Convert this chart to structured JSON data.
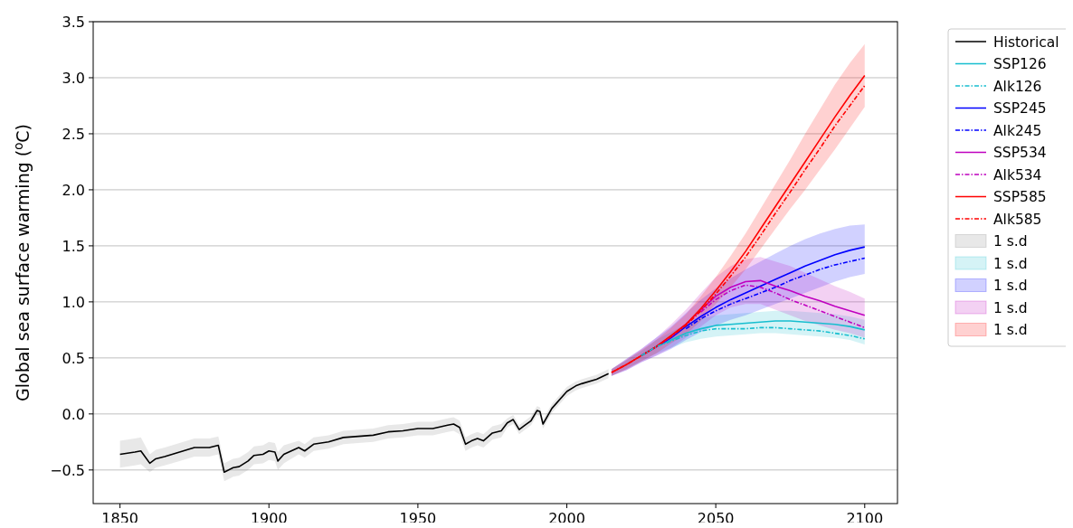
{
  "chart_data": {
    "type": "line",
    "ylabel": "Global sea surface warming ($^{o}$C)",
    "xlim": [
      1841,
      2111
    ],
    "ylim": [
      -0.8,
      3.5
    ],
    "xticks": [
      1850,
      1900,
      1950,
      2000,
      2050,
      2100
    ],
    "yticks": [
      -0.5,
      {
        "value": 0,
        "label": "0.0"
      },
      0.5,
      {
        "value": 1,
        "label": "1.0"
      },
      1.5,
      {
        "value": 2,
        "label": "2.0"
      },
      2.5,
      {
        "value": 3,
        "label": "3.0"
      },
      3.5
    ],
    "grid": "y",
    "legend": "right",
    "series": [
      {
        "name": "Historical",
        "color": "#000000",
        "line_style": "solid",
        "x": [
          1850,
          1855,
          1857,
          1860,
          1862,
          1865,
          1870,
          1875,
          1880,
          1883,
          1885,
          1888,
          1890,
          1893,
          1895,
          1898,
          1900,
          1902,
          1903,
          1905,
          1910,
          1912,
          1915,
          1920,
          1925,
          1930,
          1935,
          1940,
          1945,
          1950,
          1955,
          1960,
          1962,
          1964,
          1966,
          1968,
          1970,
          1972,
          1975,
          1978,
          1980,
          1982,
          1984,
          1986,
          1988,
          1990,
          1991,
          1992,
          1995,
          2000,
          2003,
          2005,
          2010,
          2014
        ],
        "values": [
          -0.36,
          -0.34,
          -0.33,
          -0.44,
          -0.4,
          -0.38,
          -0.34,
          -0.3,
          -0.3,
          -0.28,
          -0.52,
          -0.48,
          -0.47,
          -0.42,
          -0.37,
          -0.36,
          -0.33,
          -0.34,
          -0.42,
          -0.36,
          -0.3,
          -0.33,
          -0.27,
          -0.25,
          -0.21,
          -0.2,
          -0.19,
          -0.16,
          -0.15,
          -0.13,
          -0.13,
          -0.1,
          -0.09,
          -0.12,
          -0.27,
          -0.24,
          -0.22,
          -0.24,
          -0.17,
          -0.15,
          -0.08,
          -0.05,
          -0.14,
          -0.1,
          -0.06,
          0.03,
          0.02,
          -0.09,
          0.05,
          0.2,
          0.25,
          0.27,
          0.31,
          0.36
        ]
      },
      {
        "name": "SSP126",
        "color": "#17becf",
        "line_style": "solid",
        "x": [
          2025,
          2030,
          2035,
          2040,
          2045,
          2050,
          2055,
          2060,
          2065,
          2070,
          2075,
          2080,
          2085,
          2090,
          2095,
          2100
        ],
        "values": [
          0.52,
          0.6,
          0.66,
          0.72,
          0.76,
          0.79,
          0.8,
          0.81,
          0.82,
          0.83,
          0.83,
          0.82,
          0.81,
          0.8,
          0.78,
          0.75
        ]
      },
      {
        "name": "Alk126",
        "color": "#17becf",
        "line_style": "dashed",
        "x": [
          2025,
          2030,
          2035,
          2040,
          2045,
          2050,
          2055,
          2060,
          2065,
          2070,
          2075,
          2080,
          2085,
          2090,
          2095,
          2100
        ],
        "values": [
          0.52,
          0.6,
          0.65,
          0.7,
          0.74,
          0.76,
          0.76,
          0.76,
          0.77,
          0.77,
          0.76,
          0.75,
          0.74,
          0.72,
          0.7,
          0.67
        ]
      },
      {
        "name": "SSP245",
        "color": "#0000ff",
        "line_style": "solid",
        "x": [
          2025,
          2030,
          2035,
          2040,
          2045,
          2050,
          2055,
          2060,
          2065,
          2070,
          2075,
          2080,
          2085,
          2090,
          2095,
          2100
        ],
        "values": [
          0.52,
          0.6,
          0.68,
          0.78,
          0.87,
          0.95,
          1.02,
          1.08,
          1.14,
          1.2,
          1.26,
          1.32,
          1.37,
          1.42,
          1.46,
          1.49
        ]
      },
      {
        "name": "Alk245",
        "color": "#0000ff",
        "line_style": "dashed",
        "x": [
          2040,
          2045,
          2050,
          2055,
          2060,
          2065,
          2070,
          2075,
          2080,
          2085,
          2090,
          2095,
          2100
        ],
        "values": [
          0.76,
          0.85,
          0.92,
          0.98,
          1.03,
          1.08,
          1.13,
          1.19,
          1.24,
          1.29,
          1.33,
          1.36,
          1.39
        ]
      },
      {
        "name": "SSP534",
        "color": "#bf00bf",
        "line_style": "solid",
        "x": [
          2025,
          2030,
          2035,
          2040,
          2045,
          2050,
          2055,
          2060,
          2065,
          2070,
          2075,
          2080,
          2085,
          2090,
          2095,
          2100
        ],
        "values": [
          0.52,
          0.6,
          0.69,
          0.8,
          0.93,
          1.05,
          1.13,
          1.18,
          1.19,
          1.14,
          1.1,
          1.05,
          1.01,
          0.96,
          0.92,
          0.88
        ]
      },
      {
        "name": "Alk534",
        "color": "#bf00bf",
        "line_style": "dashed",
        "x": [
          2045,
          2050,
          2055,
          2060,
          2065,
          2070,
          2075,
          2080,
          2085,
          2090,
          2095,
          2100
        ],
        "values": [
          0.91,
          1.02,
          1.1,
          1.15,
          1.13,
          1.08,
          1.02,
          0.97,
          0.92,
          0.87,
          0.82,
          0.77
        ]
      },
      {
        "name": "SSP585",
        "color": "#ff0000",
        "line_style": "solid",
        "x": [
          2015,
          2020,
          2025,
          2030,
          2035,
          2040,
          2045,
          2050,
          2055,
          2060,
          2065,
          2070,
          2075,
          2080,
          2085,
          2090,
          2095,
          2100
        ],
        "values": [
          0.37,
          0.44,
          0.52,
          0.6,
          0.7,
          0.8,
          0.94,
          1.1,
          1.27,
          1.45,
          1.65,
          1.85,
          2.05,
          2.25,
          2.45,
          2.65,
          2.84,
          3.02
        ]
      },
      {
        "name": "Alk585",
        "color": "#ff0000",
        "line_style": "dashed",
        "x": [
          2015,
          2020,
          2025,
          2030,
          2035,
          2040,
          2045,
          2050,
          2055,
          2060,
          2065,
          2070,
          2075,
          2080,
          2085,
          2090,
          2095,
          2100
        ],
        "values": [
          0.37,
          0.44,
          0.52,
          0.6,
          0.69,
          0.79,
          0.92,
          1.07,
          1.23,
          1.4,
          1.59,
          1.79,
          1.98,
          2.18,
          2.37,
          2.57,
          2.75,
          2.93
        ]
      },
      {
        "name": "1 s.d",
        "type": "area",
        "color": "#808080",
        "x": [
          1850,
          1855,
          1857,
          1860,
          1862,
          1865,
          1870,
          1875,
          1880,
          1883,
          1885,
          1888,
          1890,
          1893,
          1895,
          1898,
          1900,
          1902,
          1903,
          1905,
          1910,
          1912,
          1915,
          1920,
          1925,
          1930,
          1935,
          1940,
          1945,
          1950,
          1955,
          1960,
          1962,
          1964,
          1966,
          1968,
          1970,
          1972,
          1975,
          1978,
          1980,
          1982,
          1984,
          1986,
          1988,
          1990,
          1991,
          1992,
          1995,
          2000,
          2003,
          2005,
          2010,
          2014
        ],
        "values": [
          null,
          null,
          null,
          null,
          null,
          null,
          null,
          null,
          null,
          null,
          null,
          null,
          null,
          null,
          null,
          null,
          null,
          null,
          null,
          null,
          null,
          null,
          null,
          null,
          null,
          null,
          null,
          null,
          null,
          null,
          null,
          null,
          null,
          null,
          null,
          null,
          null,
          null,
          null,
          null,
          null,
          null,
          null,
          null,
          null,
          null,
          null,
          null,
          null,
          null,
          null,
          null,
          null,
          null
        ],
        "upper": [
          -0.24,
          -0.22,
          -0.21,
          -0.36,
          -0.32,
          -0.3,
          -0.26,
          -0.22,
          -0.22,
          -0.2,
          -0.44,
          -0.4,
          -0.39,
          -0.34,
          -0.29,
          -0.28,
          -0.25,
          -0.26,
          -0.34,
          -0.28,
          -0.24,
          -0.27,
          -0.21,
          -0.19,
          -0.15,
          -0.14,
          -0.13,
          -0.1,
          -0.09,
          -0.07,
          -0.07,
          -0.04,
          -0.03,
          -0.06,
          -0.21,
          -0.18,
          -0.16,
          -0.18,
          -0.11,
          -0.09,
          -0.04,
          -0.01,
          -0.1,
          -0.06,
          -0.02,
          0.07,
          0.06,
          -0.05,
          0.09,
          0.24,
          0.29,
          0.31,
          0.35,
          0.4
        ],
        "lower": [
          -0.48,
          -0.46,
          -0.45,
          -0.52,
          -0.48,
          -0.46,
          -0.42,
          -0.38,
          -0.38,
          -0.36,
          -0.6,
          -0.56,
          -0.55,
          -0.5,
          -0.45,
          -0.44,
          -0.41,
          -0.42,
          -0.5,
          -0.44,
          -0.36,
          -0.39,
          -0.33,
          -0.31,
          -0.27,
          -0.26,
          -0.25,
          -0.22,
          -0.21,
          -0.19,
          -0.19,
          -0.16,
          -0.15,
          -0.18,
          -0.33,
          -0.3,
          -0.28,
          -0.3,
          -0.23,
          -0.21,
          -0.12,
          -0.09,
          -0.18,
          -0.14,
          -0.1,
          -0.01,
          -0.02,
          -0.13,
          0.01,
          0.16,
          0.21,
          0.23,
          0.27,
          0.32
        ]
      },
      {
        "name": "1 s.d",
        "type": "area",
        "color": "#17becf",
        "x": [
          2015,
          2020,
          2025,
          2030,
          2035,
          2040,
          2045,
          2050,
          2055,
          2060,
          2065,
          2070,
          2075,
          2080,
          2085,
          2090,
          2095,
          2100
        ],
        "values": [
          null,
          null,
          null,
          null,
          null,
          null,
          null,
          null,
          null,
          null,
          null,
          null,
          null,
          null,
          null,
          null,
          null,
          null
        ],
        "upper": [
          0.4,
          0.48,
          0.56,
          0.66,
          0.73,
          0.8,
          0.85,
          0.88,
          0.89,
          0.9,
          0.91,
          0.92,
          0.92,
          0.91,
          0.9,
          0.89,
          0.87,
          0.84
        ],
        "lower": [
          0.34,
          0.4,
          0.47,
          0.54,
          0.59,
          0.64,
          0.67,
          0.69,
          0.7,
          0.71,
          0.72,
          0.72,
          0.71,
          0.7,
          0.69,
          0.68,
          0.66,
          0.62
        ]
      },
      {
        "name": "1 s.d",
        "type": "area",
        "color": "#0000ff",
        "x": [
          2015,
          2020,
          2025,
          2030,
          2035,
          2040,
          2045,
          2050,
          2055,
          2060,
          2065,
          2070,
          2075,
          2080,
          2085,
          2090,
          2095,
          2100
        ],
        "values": [
          null,
          null,
          null,
          null,
          null,
          null,
          null,
          null,
          null,
          null,
          null,
          null,
          null,
          null,
          null,
          null,
          null,
          null
        ],
        "upper": [
          0.4,
          0.49,
          0.58,
          0.68,
          0.78,
          0.9,
          1.02,
          1.12,
          1.21,
          1.29,
          1.36,
          1.43,
          1.5,
          1.56,
          1.61,
          1.65,
          1.68,
          1.69
        ],
        "lower": [
          0.34,
          0.39,
          0.46,
          0.52,
          0.58,
          0.66,
          0.73,
          0.79,
          0.84,
          0.88,
          0.93,
          0.98,
          1.03,
          1.08,
          1.13,
          1.18,
          1.22,
          1.25
        ]
      },
      {
        "name": "1 s.d",
        "type": "area",
        "color": "#bf00bf",
        "x": [
          2015,
          2020,
          2025,
          2030,
          2035,
          2040,
          2045,
          2050,
          2055,
          2060,
          2065,
          2070,
          2075,
          2080,
          2085,
          2090,
          2095,
          2100
        ],
        "values": [
          null,
          null,
          null,
          null,
          null,
          null,
          null,
          null,
          null,
          null,
          null,
          null,
          null,
          null,
          null,
          null,
          null,
          null
        ],
        "upper": [
          0.4,
          0.49,
          0.58,
          0.68,
          0.8,
          0.93,
          1.08,
          1.22,
          1.32,
          1.38,
          1.4,
          1.36,
          1.32,
          1.26,
          1.2,
          1.14,
          1.09,
          1.03
        ],
        "lower": [
          0.34,
          0.39,
          0.46,
          0.52,
          0.59,
          0.68,
          0.78,
          0.88,
          0.95,
          0.98,
          0.98,
          0.93,
          0.88,
          0.83,
          0.79,
          0.75,
          0.72,
          0.68
        ]
      },
      {
        "name": "1 s.d",
        "type": "area",
        "color": "#ff0000",
        "x": [
          2015,
          2020,
          2025,
          2030,
          2035,
          2040,
          2045,
          2050,
          2055,
          2060,
          2065,
          2070,
          2075,
          2080,
          2085,
          2090,
          2095,
          2100
        ],
        "values": [
          null,
          null,
          null,
          null,
          null,
          null,
          null,
          null,
          null,
          null,
          null,
          null,
          null,
          null,
          null,
          null,
          null,
          null
        ],
        "upper": [
          0.4,
          0.48,
          0.57,
          0.66,
          0.77,
          0.89,
          1.05,
          1.22,
          1.41,
          1.61,
          1.83,
          2.05,
          2.27,
          2.5,
          2.72,
          2.94,
          3.13,
          3.3
        ],
        "lower": [
          0.34,
          0.4,
          0.47,
          0.54,
          0.63,
          0.71,
          0.83,
          0.98,
          1.13,
          1.29,
          1.47,
          1.65,
          1.83,
          2.0,
          2.18,
          2.36,
          2.55,
          2.74
        ]
      }
    ]
  }
}
